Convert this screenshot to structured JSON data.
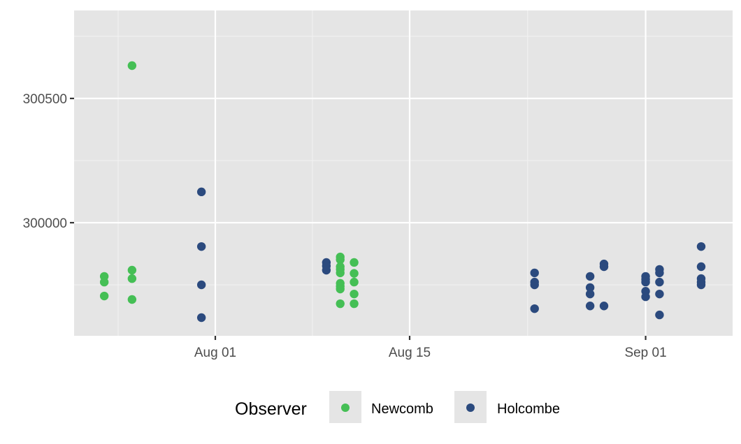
{
  "chart_data": {
    "type": "scatter",
    "title": "",
    "xlabel": "",
    "ylabel": "",
    "x_ticks": [
      {
        "label": "Aug 01",
        "day": 0
      },
      {
        "label": "Aug 15",
        "day": 14
      },
      {
        "label": "Sep 01",
        "day": 31
      }
    ],
    "y_ticks": [
      {
        "label": "300000",
        "value": 300000
      },
      {
        "label": "300500",
        "value": 300500
      }
    ],
    "xlim_days": [
      -10.1,
      36.4
    ],
    "ylim": [
      299562,
      300857
    ],
    "grid": true,
    "legend": {
      "title": "Observer",
      "position": "bottom"
    },
    "series": [
      {
        "name": "Newcomb",
        "color": "#45bf55",
        "points": [
          {
            "date": "Jul 24",
            "day": -8,
            "value": 299784
          },
          {
            "date": "Jul 24",
            "day": -8,
            "value": 299761
          },
          {
            "date": "Jul 24",
            "day": -8,
            "value": 299705
          },
          {
            "date": "Jul 26",
            "day": -6,
            "value": 300632
          },
          {
            "date": "Jul 26",
            "day": -6,
            "value": 299809
          },
          {
            "date": "Jul 26",
            "day": -6,
            "value": 299775
          },
          {
            "date": "Jul 26",
            "day": -6,
            "value": 299691
          },
          {
            "date": "Aug 10",
            "day": 9,
            "value": 299862
          },
          {
            "date": "Aug 10",
            "day": 9,
            "value": 299851
          },
          {
            "date": "Aug 10",
            "day": 9,
            "value": 299823
          },
          {
            "date": "Aug 10",
            "day": 9,
            "value": 299812
          },
          {
            "date": "Aug 10",
            "day": 9,
            "value": 299798
          },
          {
            "date": "Aug 10",
            "day": 9,
            "value": 299756
          },
          {
            "date": "Aug 10",
            "day": 9,
            "value": 299744
          },
          {
            "date": "Aug 10",
            "day": 9,
            "value": 299733
          },
          {
            "date": "Aug 10",
            "day": 9,
            "value": 299674
          },
          {
            "date": "Aug 11",
            "day": 10,
            "value": 299840
          },
          {
            "date": "Aug 11",
            "day": 10,
            "value": 299796
          },
          {
            "date": "Aug 11",
            "day": 10,
            "value": 299761
          },
          {
            "date": "Aug 11",
            "day": 10,
            "value": 299713
          },
          {
            "date": "Aug 11",
            "day": 10,
            "value": 299674
          }
        ]
      },
      {
        "name": "Holcombe",
        "color": "#2b4a7e",
        "points": [
          {
            "date": "Jul 31",
            "day": -1,
            "value": 300124
          },
          {
            "date": "Jul 31",
            "day": -1,
            "value": 299904
          },
          {
            "date": "Jul 31",
            "day": -1,
            "value": 299750
          },
          {
            "date": "Jul 31",
            "day": -1,
            "value": 299618
          },
          {
            "date": "Aug 09",
            "day": 8,
            "value": 299840
          },
          {
            "date": "Aug 09",
            "day": 8,
            "value": 299826
          },
          {
            "date": "Aug 09",
            "day": 8,
            "value": 299809
          },
          {
            "date": "Aug 24",
            "day": 23,
            "value": 299798
          },
          {
            "date": "Aug 24",
            "day": 23,
            "value": 299761
          },
          {
            "date": "Aug 24",
            "day": 23,
            "value": 299750
          },
          {
            "date": "Aug 24",
            "day": 23,
            "value": 299654
          },
          {
            "date": "Aug 28",
            "day": 27,
            "value": 299784
          },
          {
            "date": "Aug 28",
            "day": 27,
            "value": 299739
          },
          {
            "date": "Aug 28",
            "day": 27,
            "value": 299713
          },
          {
            "date": "Aug 28",
            "day": 27,
            "value": 299665
          },
          {
            "date": "Aug 29",
            "day": 28,
            "value": 299834
          },
          {
            "date": "Aug 29",
            "day": 28,
            "value": 299823
          },
          {
            "date": "Aug 29",
            "day": 28,
            "value": 299665
          },
          {
            "date": "Sep 01",
            "day": 31,
            "value": 299784
          },
          {
            "date": "Sep 01",
            "day": 31,
            "value": 299772
          },
          {
            "date": "Sep 01",
            "day": 31,
            "value": 299761
          },
          {
            "date": "Sep 01",
            "day": 31,
            "value": 299724
          },
          {
            "date": "Sep 01",
            "day": 31,
            "value": 299702
          },
          {
            "date": "Sep 02",
            "day": 32,
            "value": 299812
          },
          {
            "date": "Sep 02",
            "day": 32,
            "value": 299798
          },
          {
            "date": "Sep 02",
            "day": 32,
            "value": 299761
          },
          {
            "date": "Sep 02",
            "day": 32,
            "value": 299713
          },
          {
            "date": "Sep 02",
            "day": 32,
            "value": 299629
          },
          {
            "date": "Sep 05",
            "day": 35,
            "value": 299904
          },
          {
            "date": "Sep 05",
            "day": 35,
            "value": 299823
          },
          {
            "date": "Sep 05",
            "day": 35,
            "value": 299775
          },
          {
            "date": "Sep 05",
            "day": 35,
            "value": 299761
          },
          {
            "date": "Sep 05",
            "day": 35,
            "value": 299750
          }
        ]
      }
    ]
  },
  "legend": {
    "title": "Observer",
    "items": [
      {
        "label": "Newcomb",
        "color": "#45bf55"
      },
      {
        "label": "Holcombe",
        "color": "#2b4a7e"
      }
    ]
  },
  "theme": {
    "panel_bg": "#e5e5e5",
    "grid_major": "#ffffff",
    "grid_minor": "#f2f2f2"
  }
}
